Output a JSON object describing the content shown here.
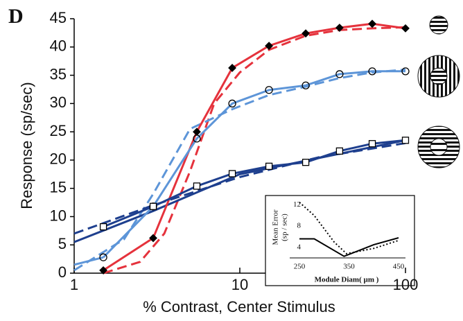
{
  "chart_data": [
    {
      "type": "line",
      "panel_label": "D",
      "xlabel": "% Contrast, Center Stimulus",
      "ylabel": "Response (sp/sec)",
      "xscale": "log",
      "xlim": [
        1,
        100
      ],
      "xticks": [
        1,
        10,
        100
      ],
      "ylim": [
        0,
        45
      ],
      "yticks": [
        0,
        5,
        10,
        15,
        20,
        25,
        30,
        35,
        40,
        45
      ],
      "x": [
        1.5,
        3,
        5.5,
        9,
        15,
        25,
        40,
        63,
        100
      ],
      "series": [
        {
          "color": "#e5323c",
          "marker": "diamond",
          "values": [
            0.5,
            6.2,
            25,
            36.3,
            40.2,
            42.4,
            43.4,
            44.1,
            43.3
          ]
        },
        {
          "color": "#5d95d8",
          "marker": "circle",
          "values": [
            2.8,
            11.8,
            23.8,
            30,
            32.4,
            33.2,
            35.2,
            35.7,
            35.7
          ]
        },
        {
          "color": "#1e3f8e",
          "marker": "square",
          "values": [
            8.2,
            11.8,
            15.4,
            17.6,
            18.9,
            19.6,
            21.6,
            22.9,
            23.5
          ]
        }
      ],
      "fits": [
        {
          "color": "#e5323c",
          "dashed": true,
          "x": [
            1.5,
            2.5,
            3.5,
            5,
            7,
            10,
            15,
            25,
            40,
            63,
            100
          ],
          "values": [
            0,
            2,
            7,
            18,
            30,
            35.5,
            39.5,
            42,
            43,
            43.3,
            43.5
          ]
        },
        {
          "color": "#5d95d8",
          "dashed": false,
          "x": [
            1,
            1.5
          ],
          "values": [
            1.5,
            2.8
          ]
        },
        {
          "color": "#5d95d8",
          "dashed": true,
          "x": [
            1,
            2,
            3,
            5,
            9,
            15,
            25,
            40,
            63,
            100
          ],
          "values": [
            0.5,
            6,
            14,
            25.5,
            29,
            31.5,
            33,
            34.5,
            35.5,
            36
          ]
        },
        {
          "color": "#1e3f8e",
          "dashed": false,
          "x": [
            1,
            3,
            10,
            100
          ],
          "values": [
            5.5,
            11,
            17.5,
            23.5
          ]
        },
        {
          "color": "#1e3f8e",
          "dashed": true,
          "x": [
            1,
            3,
            10,
            30,
            100
          ],
          "values": [
            7,
            12,
            17,
            20.5,
            23
          ]
        }
      ]
    },
    {
      "type": "line",
      "xlabel": "Module Diam( µm )",
      "ylabel": [
        "Mean Error",
        "(sp / sec)"
      ],
      "xlim": [
        250,
        450
      ],
      "xticks": [
        250,
        350,
        450
      ],
      "ylim": [
        2,
        13
      ],
      "yticks": [
        4,
        8,
        12
      ],
      "series": [
        {
          "color": "#000000",
          "dash": "solid",
          "x": [
            250,
            280,
            340,
            400,
            450
          ],
          "values": [
            5.6,
            5.6,
            2.3,
            4.5,
            5.8
          ]
        },
        {
          "color": "#000000",
          "dash": "dotted",
          "x": [
            250,
            280,
            320,
            345,
            400,
            450
          ],
          "values": [
            12.5,
            10,
            5,
            2.8,
            3.8,
            5.3
          ]
        }
      ]
    }
  ]
}
